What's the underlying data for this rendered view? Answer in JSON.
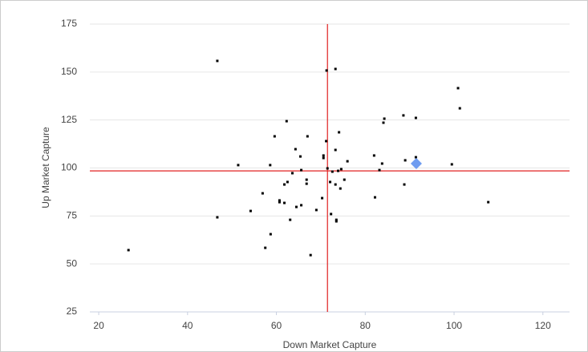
{
  "chart_data": {
    "type": "scatter",
    "x_label": "Down Market Capture",
    "y_label": "Up Market Capture",
    "xlim": [
      18,
      126
    ],
    "xticks": [
      20,
      40,
      60,
      80,
      100,
      120
    ],
    "ylim": [
      25,
      175
    ],
    "yticks": [
      25,
      50,
      75,
      100,
      125,
      150,
      175
    ],
    "grid": true,
    "reference_lines": {
      "x": 71.5,
      "y": 98.5,
      "color": "#e02020"
    },
    "series": [
      {
        "color": "#000000",
        "marker": "square",
        "x": [
          26.7,
          46.7,
          46.7,
          51.4,
          54.2,
          56.9,
          57.5,
          58.6,
          58.7,
          59.6,
          60.7,
          60.7,
          61.8,
          61.8,
          62.5,
          62.3,
          63.1,
          63.6,
          64.3,
          64.5,
          65.4,
          65.6,
          65.6,
          66.8,
          66.8,
          67.0,
          67.7,
          69.0,
          70.3,
          70.6,
          70.6,
          71.2,
          71.3,
          71.5,
          72.1,
          72.3,
          72.6,
          73.3,
          73.3,
          73.3,
          73.5,
          73.5,
          73.9,
          74.1,
          74.4,
          74.6,
          75.3,
          76.0,
          82.0,
          82.2,
          83.2,
          83.8,
          84.1,
          84.3,
          88.6,
          88.8,
          89.0,
          91.4,
          91.4,
          99.5,
          100.9,
          101.3,
          107.7
        ],
        "y": [
          57.2,
          155.8,
          74.3,
          101.5,
          77.6,
          86.8,
          58.4,
          101.5,
          65.5,
          116.5,
          83.1,
          82.2,
          81.8,
          91.4,
          92.7,
          124.4,
          73.0,
          97.3,
          109.8,
          79.7,
          106.0,
          98.9,
          80.6,
          93.9,
          91.8,
          116.5,
          54.6,
          78.1,
          84.3,
          105.2,
          106.5,
          114.0,
          150.8,
          99.8,
          92.7,
          76.0,
          98.1,
          151.6,
          109.4,
          91.4,
          73.0,
          72.2,
          98.5,
          118.6,
          89.3,
          99.4,
          93.9,
          103.5,
          106.5,
          84.7,
          98.9,
          102.3,
          123.6,
          125.7,
          127.4,
          91.4,
          104.0,
          126.1,
          105.6,
          101.9,
          141.6,
          131.1,
          82.2
        ]
      },
      {
        "color": "#6f9cf0",
        "marker": "diamond",
        "x": [
          91.5
        ],
        "y": [
          102.3
        ]
      }
    ]
  }
}
